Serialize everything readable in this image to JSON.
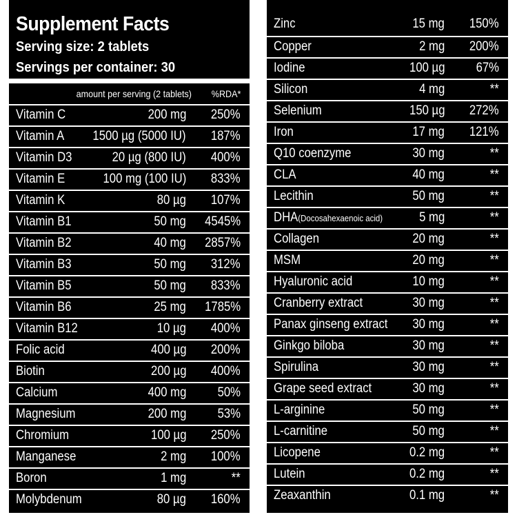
{
  "header": {
    "title": "Supplement Facts",
    "serving_size": "Serving size: 2 tablets",
    "servings_per_container": "Servings per container: 30",
    "amount_label": "amount per serving (2 tablets)",
    "rda_label": "%RDA*"
  },
  "left_rows": [
    {
      "name": "Vitamin C",
      "amount": "200 mg",
      "rda": "250%"
    },
    {
      "name": "Vitamin A",
      "amount": "1500 µg (5000 IU)",
      "rda": "187%"
    },
    {
      "name": "Vitamin D3",
      "amount": "20 µg (800 IU)",
      "rda": "400%"
    },
    {
      "name": "Vitamin E",
      "amount": "100 mg (100 IU)",
      "rda": "833%"
    },
    {
      "name": "Vitamin K",
      "amount": "80 µg",
      "rda": "107%"
    },
    {
      "name": "Vitamin B1",
      "amount": "50 mg",
      "rda": "4545%"
    },
    {
      "name": "Vitamin B2",
      "amount": "40 mg",
      "rda": "2857%"
    },
    {
      "name": "Vitamin B3",
      "amount": "50 mg",
      "rda": "312%"
    },
    {
      "name": "Vitamin B5",
      "amount": "50 mg",
      "rda": "833%"
    },
    {
      "name": "Vitamin B6",
      "amount": "25 mg",
      "rda": "1785%"
    },
    {
      "name": "Vitamin B12",
      "amount": "10 µg",
      "rda": "400%"
    },
    {
      "name": "Folic acid",
      "amount": "400 µg",
      "rda": "200%"
    },
    {
      "name": "Biotin",
      "amount": "200 µg",
      "rda": "400%"
    },
    {
      "name": "Calcium",
      "amount": "400 mg",
      "rda": "50%"
    },
    {
      "name": "Magnesium",
      "amount": "200 mg",
      "rda": "53%"
    },
    {
      "name": "Chromium",
      "amount": "100 µg",
      "rda": "250%"
    },
    {
      "name": "Manganese",
      "amount": "2 mg",
      "rda": "100%"
    },
    {
      "name": "Boron",
      "amount": "1 mg",
      "rda": "**"
    },
    {
      "name": "Molybdenum",
      "amount": "80 µg",
      "rda": "160%"
    }
  ],
  "right_rows": [
    {
      "name": "Zinc",
      "amount": "15 mg",
      "rda": "150%"
    },
    {
      "name": "Copper",
      "amount": "2 mg",
      "rda": "200%"
    },
    {
      "name": "Iodine",
      "amount": "100 µg",
      "rda": "67%"
    },
    {
      "name": "Silicon",
      "amount": "4 mg",
      "rda": "**"
    },
    {
      "name": "Selenium",
      "amount": "150 µg",
      "rda": "272%"
    },
    {
      "name": "Iron",
      "amount": "17 mg",
      "rda": "121%"
    },
    {
      "name": "Q10 coenzyme",
      "amount": "30 mg",
      "rda": "**"
    },
    {
      "name": "CLA",
      "amount": "40 mg",
      "rda": "**"
    },
    {
      "name": "Lecithin",
      "amount": "50 mg",
      "rda": "**"
    },
    {
      "name": "DHA",
      "name_note": "(Docosahexaenoic acid)",
      "amount": "5 mg",
      "rda": "**"
    },
    {
      "name": "Collagen",
      "amount": "20 mg",
      "rda": "**"
    },
    {
      "name": "MSM",
      "amount": "20 mg",
      "rda": "**"
    },
    {
      "name": "Hyaluronic acid",
      "amount": "10 mg",
      "rda": "**"
    },
    {
      "name": "Cranberry extract",
      "amount": "30 mg",
      "rda": "**"
    },
    {
      "name": "Panax ginseng extract",
      "amount": "30 mg",
      "rda": "**"
    },
    {
      "name": "Ginkgo biloba",
      "amount": "30 mg",
      "rda": "**"
    },
    {
      "name": "Spirulina",
      "amount": "30 mg",
      "rda": "**"
    },
    {
      "name": "Grape seed extract",
      "amount": "30 mg",
      "rda": "**"
    },
    {
      "name": "L-arginine",
      "amount": "50 mg",
      "rda": "**"
    },
    {
      "name": "L-carnitine",
      "amount": "50 mg",
      "rda": "**"
    },
    {
      "name": "Licopene",
      "amount": "0.2 mg",
      "rda": "**"
    },
    {
      "name": "Lutein",
      "amount": "0.2 mg",
      "rda": "**"
    },
    {
      "name": "Zeaxanthin",
      "amount": "0.1 mg",
      "rda": "**"
    }
  ]
}
